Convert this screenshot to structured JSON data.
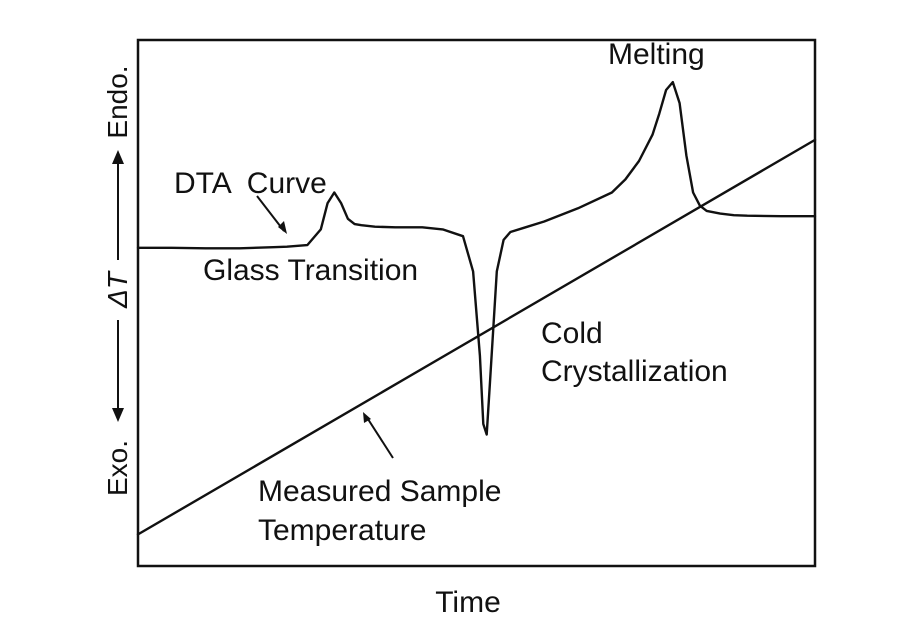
{
  "chart_data": {
    "type": "line",
    "title": "",
    "xlabel": "Time",
    "ylabel": "ΔT",
    "ylabel_top": "Endo.",
    "ylabel_bottom": "Exo.",
    "ticks": "none",
    "grid": false,
    "legend": "none",
    "xlim": [
      0,
      100
    ],
    "ylim": [
      0,
      100
    ],
    "series": [
      {
        "x": [
          0,
          5,
          10,
          15,
          20,
          22,
          25,
          27,
          28,
          29,
          30,
          31,
          32,
          33,
          35,
          38,
          42,
          45,
          48,
          49.5,
          50.5,
          51,
          51.5,
          52,
          53,
          54,
          55,
          57,
          60,
          65,
          70,
          72,
          74,
          76,
          77,
          78,
          79,
          80,
          81,
          82,
          83,
          84,
          86,
          88,
          90,
          95,
          100
        ],
        "y": [
          60.5,
          60.5,
          60.4,
          60.4,
          60.6,
          60.7,
          61,
          64,
          69,
          71,
          69,
          66,
          65,
          64.8,
          64.5,
          64.4,
          64.4,
          64,
          62.7,
          56,
          40,
          27,
          25,
          35,
          56,
          62,
          63.5,
          64.3,
          65.5,
          68,
          71,
          73.5,
          77,
          82,
          86,
          90.5,
          92,
          88,
          78,
          71,
          68.5,
          67.5,
          67,
          66.7,
          66.6,
          66.5,
          66.5
        ]
      },
      {
        "x": [
          0,
          100
        ],
        "y": [
          6,
          81
        ]
      }
    ],
    "annotations": [
      {
        "text": "DTA  Curve"
      },
      {
        "text": "Glass Transition"
      },
      {
        "text": "Melting"
      },
      {
        "text": "Cold"
      },
      {
        "text": "Crystallization"
      },
      {
        "text": "Measured Sample"
      },
      {
        "text": "Temperature"
      }
    ]
  }
}
